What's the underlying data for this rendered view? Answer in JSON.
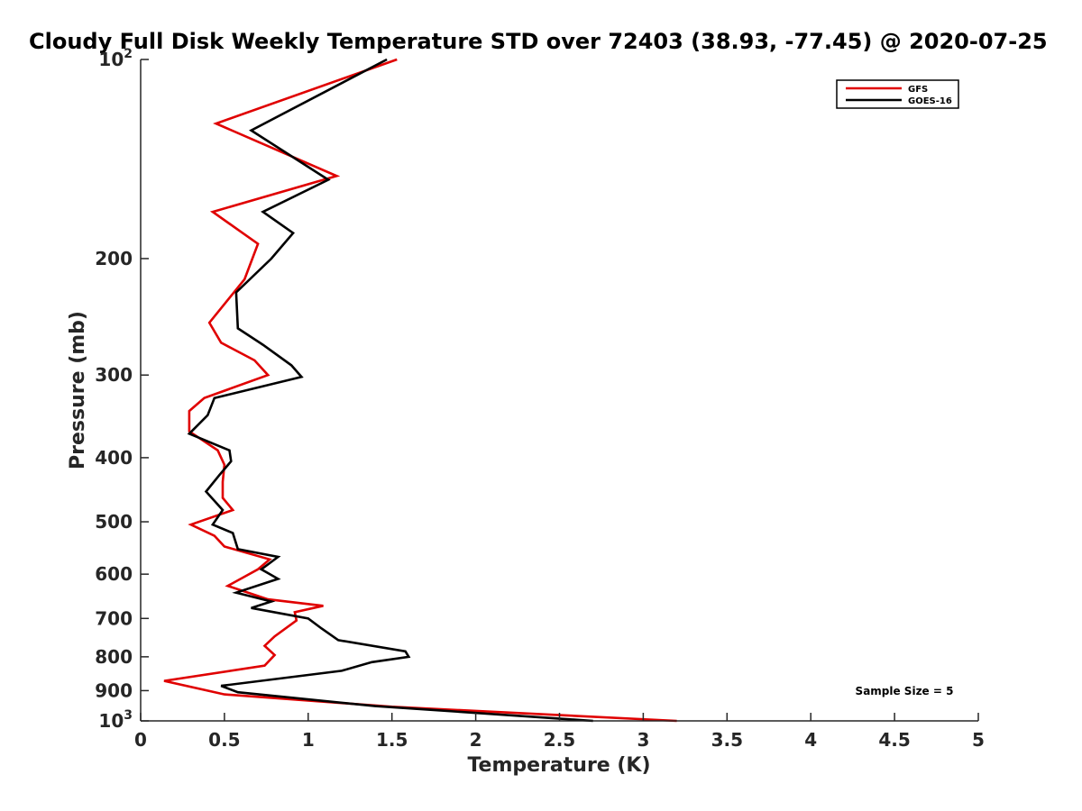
{
  "chart_data": {
    "type": "line",
    "title": "Cloudy Full Disk Weekly Temperature STD over 72403 (38.93, -77.45) @ 2020-07-25",
    "xlabel": "Temperature (K)",
    "ylabel": "Pressure (mb)",
    "xlim": [
      0,
      5
    ],
    "ylim": [
      100,
      1000
    ],
    "yscale": "log",
    "y_reversed": true,
    "grid": false,
    "legend_placement": "top-right",
    "x_ticks": [
      "0",
      "0.5",
      "1",
      "1.5",
      "2",
      "2.5",
      "3",
      "3.5",
      "4",
      "4.5",
      "5"
    ],
    "x_tick_values": [
      0,
      0.5,
      1,
      1.5,
      2,
      2.5,
      3,
      3.5,
      4,
      4.5,
      5
    ],
    "y_ticks": [
      {
        "value": 100,
        "base": "10",
        "exp": "2"
      },
      {
        "value": 200,
        "label": "200"
      },
      {
        "value": 300,
        "label": "300"
      },
      {
        "value": 400,
        "label": "400"
      },
      {
        "value": 500,
        "label": "500"
      },
      {
        "value": 600,
        "label": "600"
      },
      {
        "value": 700,
        "label": "700"
      },
      {
        "value": 800,
        "label": "800"
      },
      {
        "value": 900,
        "label": "900"
      },
      {
        "value": 1000,
        "base": "10",
        "exp": "3"
      }
    ],
    "series": [
      {
        "name": "GFS",
        "color": "#e00000",
        "points": [
          [
            1.53,
            100
          ],
          [
            0.45,
            125
          ],
          [
            1.17,
            150
          ],
          [
            0.43,
            170
          ],
          [
            0.7,
            190
          ],
          [
            0.62,
            215
          ],
          [
            0.41,
            250
          ],
          [
            0.48,
            268
          ],
          [
            0.68,
            285
          ],
          [
            0.76,
            300
          ],
          [
            0.38,
            325
          ],
          [
            0.29,
            340
          ],
          [
            0.29,
            365
          ],
          [
            0.46,
            390
          ],
          [
            0.5,
            410
          ],
          [
            0.49,
            435
          ],
          [
            0.49,
            460
          ],
          [
            0.55,
            480
          ],
          [
            0.3,
            505
          ],
          [
            0.44,
            525
          ],
          [
            0.5,
            545
          ],
          [
            0.77,
            570
          ],
          [
            0.7,
            590
          ],
          [
            0.52,
            625
          ],
          [
            0.76,
            655
          ],
          [
            1.09,
            670
          ],
          [
            0.92,
            685
          ],
          [
            0.93,
            705
          ],
          [
            0.8,
            745
          ],
          [
            0.74,
            770
          ],
          [
            0.8,
            795
          ],
          [
            0.74,
            825
          ],
          [
            0.14,
            870
          ],
          [
            0.5,
            912
          ],
          [
            1.5,
            952
          ],
          [
            2.5,
            980
          ],
          [
            3.2,
            1000
          ]
        ]
      },
      {
        "name": "GOES-16",
        "color": "#000000",
        "points": [
          [
            1.47,
            100
          ],
          [
            0.66,
            128
          ],
          [
            1.12,
            152
          ],
          [
            0.73,
            170
          ],
          [
            0.91,
            183
          ],
          [
            0.78,
            200
          ],
          [
            0.57,
            225
          ],
          [
            0.58,
            255
          ],
          [
            0.73,
            270
          ],
          [
            0.9,
            290
          ],
          [
            0.96,
            302
          ],
          [
            0.44,
            325
          ],
          [
            0.4,
            345
          ],
          [
            0.29,
            368
          ],
          [
            0.53,
            390
          ],
          [
            0.54,
            405
          ],
          [
            0.47,
            425
          ],
          [
            0.39,
            450
          ],
          [
            0.49,
            480
          ],
          [
            0.43,
            505
          ],
          [
            0.55,
            520
          ],
          [
            0.58,
            550
          ],
          [
            0.82,
            565
          ],
          [
            0.72,
            590
          ],
          [
            0.82,
            610
          ],
          [
            0.57,
            640
          ],
          [
            0.78,
            660
          ],
          [
            0.66,
            675
          ],
          [
            1.0,
            700
          ],
          [
            1.08,
            725
          ],
          [
            1.18,
            755
          ],
          [
            1.58,
            785
          ],
          [
            1.6,
            800
          ],
          [
            1.38,
            815
          ],
          [
            1.2,
            840
          ],
          [
            0.48,
            885
          ],
          [
            0.58,
            905
          ],
          [
            1.4,
            950
          ],
          [
            1.8,
            965
          ],
          [
            2.7,
            1000
          ]
        ]
      }
    ],
    "annotation": "Sample Size = 5"
  }
}
